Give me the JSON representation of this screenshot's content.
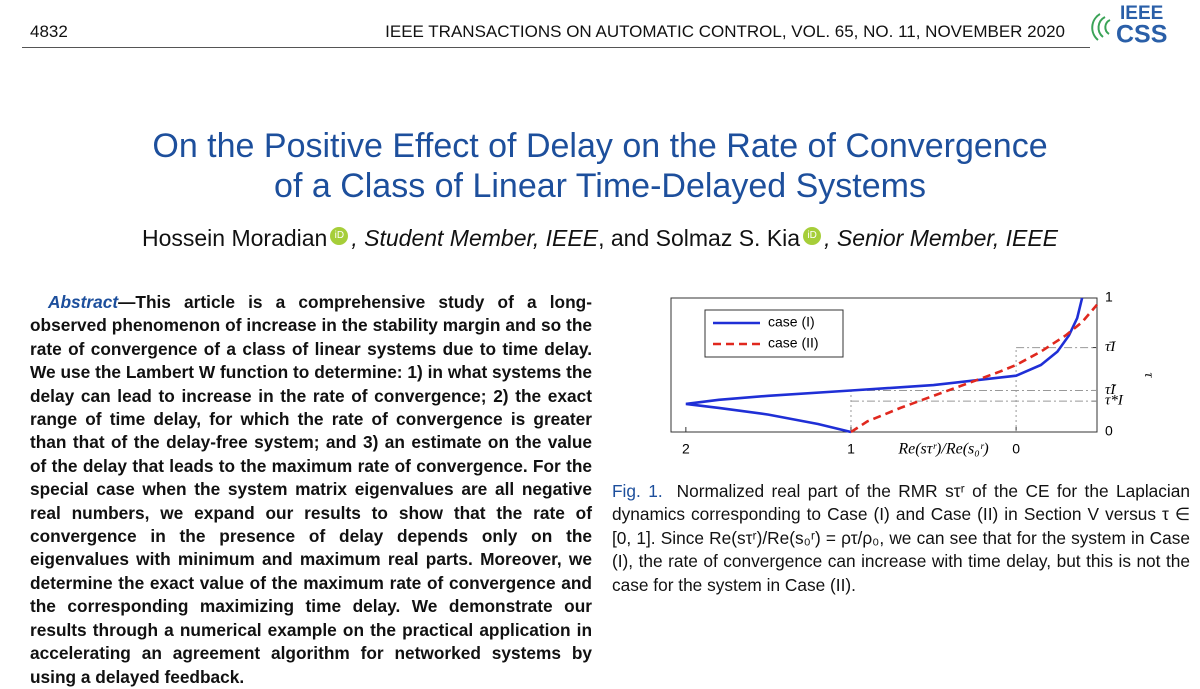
{
  "header": {
    "page": "4832",
    "journal": "IEEE TRANSACTIONS ON AUTOMATIC CONTROL, VOL. 65, NO. 11, NOVEMBER 2020",
    "logo_top": "IEEE",
    "logo_bottom": "CSS"
  },
  "title": [
    "On the Positive Effect of Delay on the Rate of Convergence",
    "of a Class of Linear Time-Delayed Systems"
  ],
  "authors": {
    "first": "Hossein Moradian",
    "first_role": ", Student Member, IEEE",
    "joiner": ", and Solmaz S. Kia",
    "second_role": ", Senior Member, IEEE",
    "orcid": "iD"
  },
  "abstract": {
    "label": "Abstract",
    "text": "—This article is a comprehensive study of a long-observed phenomenon of increase in the stability margin and so the rate of convergence of a class of linear systems due to time delay. We use the Lambert W function to determine: 1) in what systems the delay can lead to increase in the rate of convergence; 2) the exact range of time delay, for which the rate of convergence is greater than that of the delay-free system; and 3) an estimate on the value of the delay that leads to the maximum rate of convergence. For the special case when the system matrix eigenvalues are all negative real numbers, we expand our results to show that the rate of convergence in the presence of delay depends only on the eigenvalues with minimum and maximum real parts. Moreover, we determine the exact value of the maximum rate of convergence and the corresponding maximizing time delay. We demonstrate our results through a numerical example on the practical application in accelerating an agreement algorithm for networked systems by using a delayed feedback."
  },
  "caption": {
    "label": "Fig. 1.",
    "text": "Normalized real part of the RMR sτʳ of the CE for the Laplacian dynamics corresponding to Case (I) and Case (II) in Section V versus τ ∈ [0, 1]. Since Re(sτʳ)/Re(s₀ʳ) = ρτ/ρ₀, we can see that for the system in Case (I), the rate of convergence can increase with time delay, but this is not the case for the system in Case (II)."
  },
  "chart_data": {
    "type": "line",
    "x_label": "Re(sτʳ)/Re(s₀ʳ)",
    "y_label": "τ",
    "xlim": [
      2.09,
      -0.49
    ],
    "xticks": [
      2,
      1,
      0
    ],
    "ylim": [
      0,
      1
    ],
    "yticks": [
      0,
      {
        "value": 0.23,
        "label": "τ*I"
      },
      {
        "value": 0.31,
        "label": "τ̃I"
      },
      {
        "value": 0.63,
        "label": "τ̄I"
      },
      1
    ],
    "legend": "upper left",
    "series": [
      {
        "name": "case (I)",
        "color": "#1f2fd6",
        "dash": false,
        "x": [
          1,
          1.2,
          1.5,
          1.8,
          2.0,
          1.8,
          1.5,
          1.0,
          0.5,
          0,
          -0.15,
          -0.25,
          -0.32,
          -0.37,
          -0.4
        ],
        "values": [
          0,
          0.06,
          0.13,
          0.18,
          0.21,
          0.24,
          0.27,
          0.31,
          0.35,
          0.42,
          0.5,
          0.6,
          0.72,
          0.85,
          1.0
        ]
      },
      {
        "name": "case (II)",
        "color": "#e0281e",
        "dash": true,
        "x": [
          1,
          0.9,
          0.7,
          0.5,
          0.3,
          0.1,
          0,
          -0.15,
          -0.3,
          -0.4,
          -0.49
        ],
        "values": [
          0,
          0.08,
          0.18,
          0.27,
          0.36,
          0.45,
          0.5,
          0.6,
          0.72,
          0.82,
          0.95
        ]
      }
    ]
  }
}
